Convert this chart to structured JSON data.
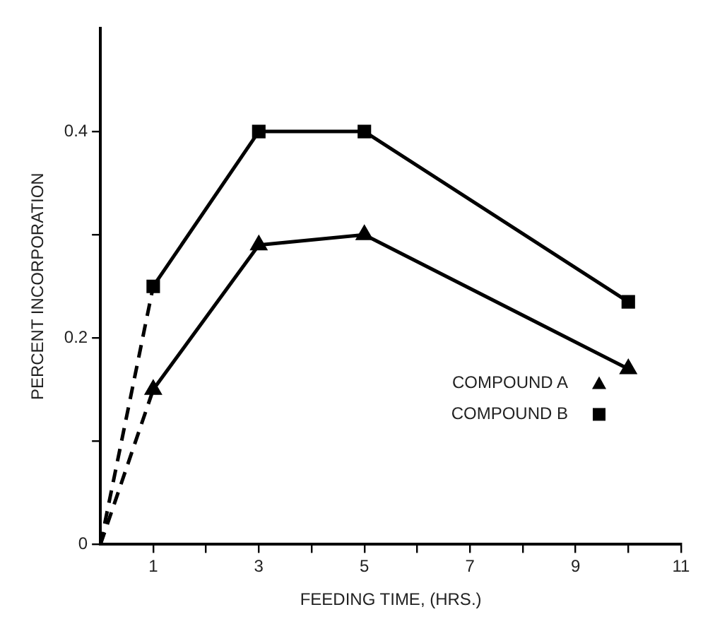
{
  "chart_data": {
    "type": "line",
    "xlabel": "FEEDING TIME, (HRS.)",
    "ylabel": "PERCENT INCORPORATION",
    "xlim": [
      0,
      11
    ],
    "ylim": [
      0,
      0.5
    ],
    "xticks": [
      {
        "value": 1,
        "label": "1"
      },
      {
        "value": 2,
        "label": null
      },
      {
        "value": 3,
        "label": "3"
      },
      {
        "value": 4,
        "label": null
      },
      {
        "value": 5,
        "label": "5"
      },
      {
        "value": 6,
        "label": null
      },
      {
        "value": 7,
        "label": "7"
      },
      {
        "value": 8,
        "label": null
      },
      {
        "value": 9,
        "label": "9"
      },
      {
        "value": 10,
        "label": null
      },
      {
        "value": 11,
        "label": "11"
      }
    ],
    "yticks": [
      {
        "value": 0,
        "label": "0"
      },
      {
        "value": 0.1,
        "label": null
      },
      {
        "value": 0.2,
        "label": "0.2"
      },
      {
        "value": 0.3,
        "label": null
      },
      {
        "value": 0.4,
        "label": "0.4"
      }
    ],
    "grid": false,
    "legend": "bottom right",
    "series": [
      {
        "name": "COMPOUND A",
        "color": "#000000",
        "x": [
          1,
          3,
          5,
          10
        ],
        "values": [
          0.15,
          0.29,
          0.3,
          0.17
        ],
        "marker": "triangle",
        "line_style": "solid"
      },
      {
        "name": "COMPOUND B",
        "color": "#000000",
        "x": [
          1,
          3,
          5,
          10
        ],
        "values": [
          0.25,
          0.4,
          0.4,
          0.235
        ],
        "marker": "square",
        "line_style": "solid"
      },
      {
        "color": "#000000",
        "x": [
          0,
          1
        ],
        "values": [
          0,
          0.15
        ],
        "marker": "none",
        "line_style": "dashed"
      },
      {
        "color": "#000000",
        "x": [
          0,
          1
        ],
        "values": [
          0,
          0.25
        ],
        "marker": "none",
        "line_style": "dashed"
      }
    ]
  }
}
